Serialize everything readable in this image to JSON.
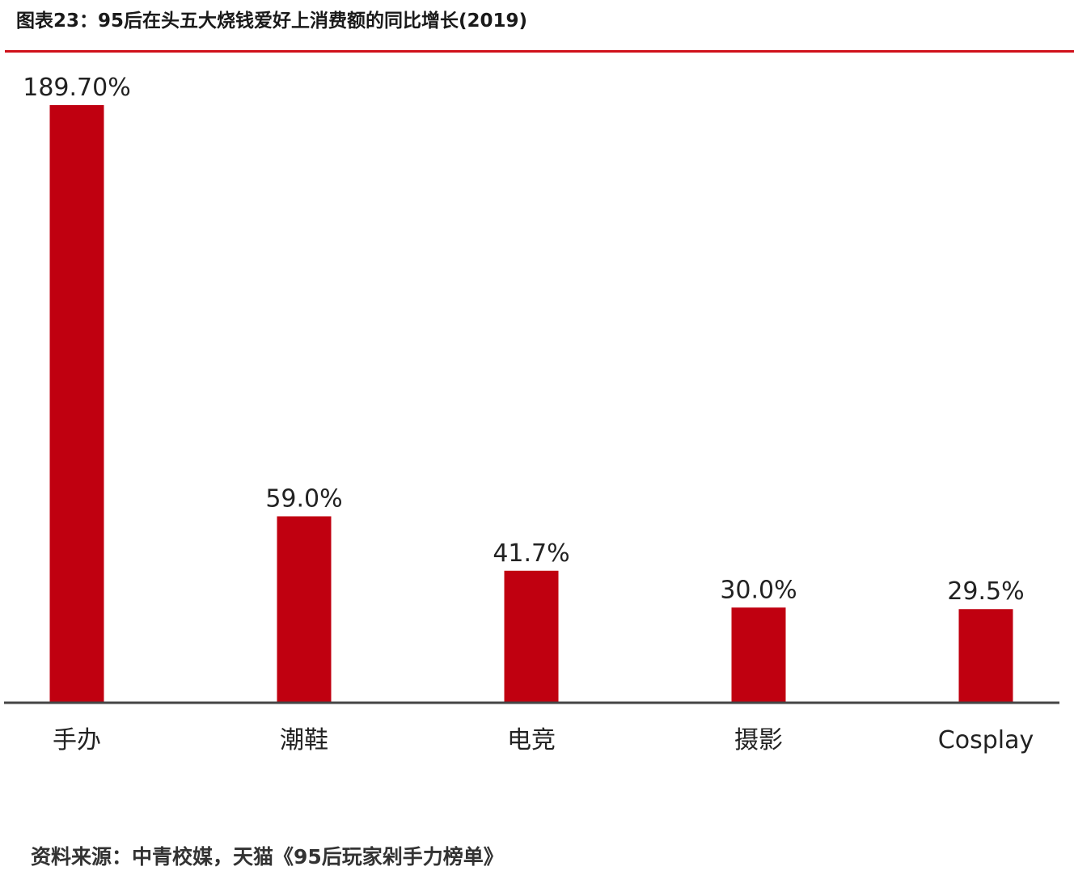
{
  "header": {
    "title": "图表23：95后在头五大烧钱爱好上消费额的同比增长(2019)"
  },
  "chart_data": {
    "type": "bar",
    "title": "图表23：95后在头五大烧钱爱好上消费额的同比增长(2019)",
    "categories": [
      "手办",
      "潮鞋",
      "电竞",
      "摄影",
      "Cosplay"
    ],
    "values": [
      189.7,
      59.0,
      41.7,
      30.0,
      29.5
    ],
    "value_labels": [
      "189.70%",
      "59.0%",
      "41.7%",
      "30.0%",
      "29.5%"
    ],
    "unit": "%",
    "ylim": [
      0,
      189.7
    ],
    "grid": false,
    "legend": "none",
    "bar_color": "#c00010"
  },
  "footer": {
    "source": "资料来源：中青校媒，天猫《95后玩家剁手力榜单》"
  }
}
